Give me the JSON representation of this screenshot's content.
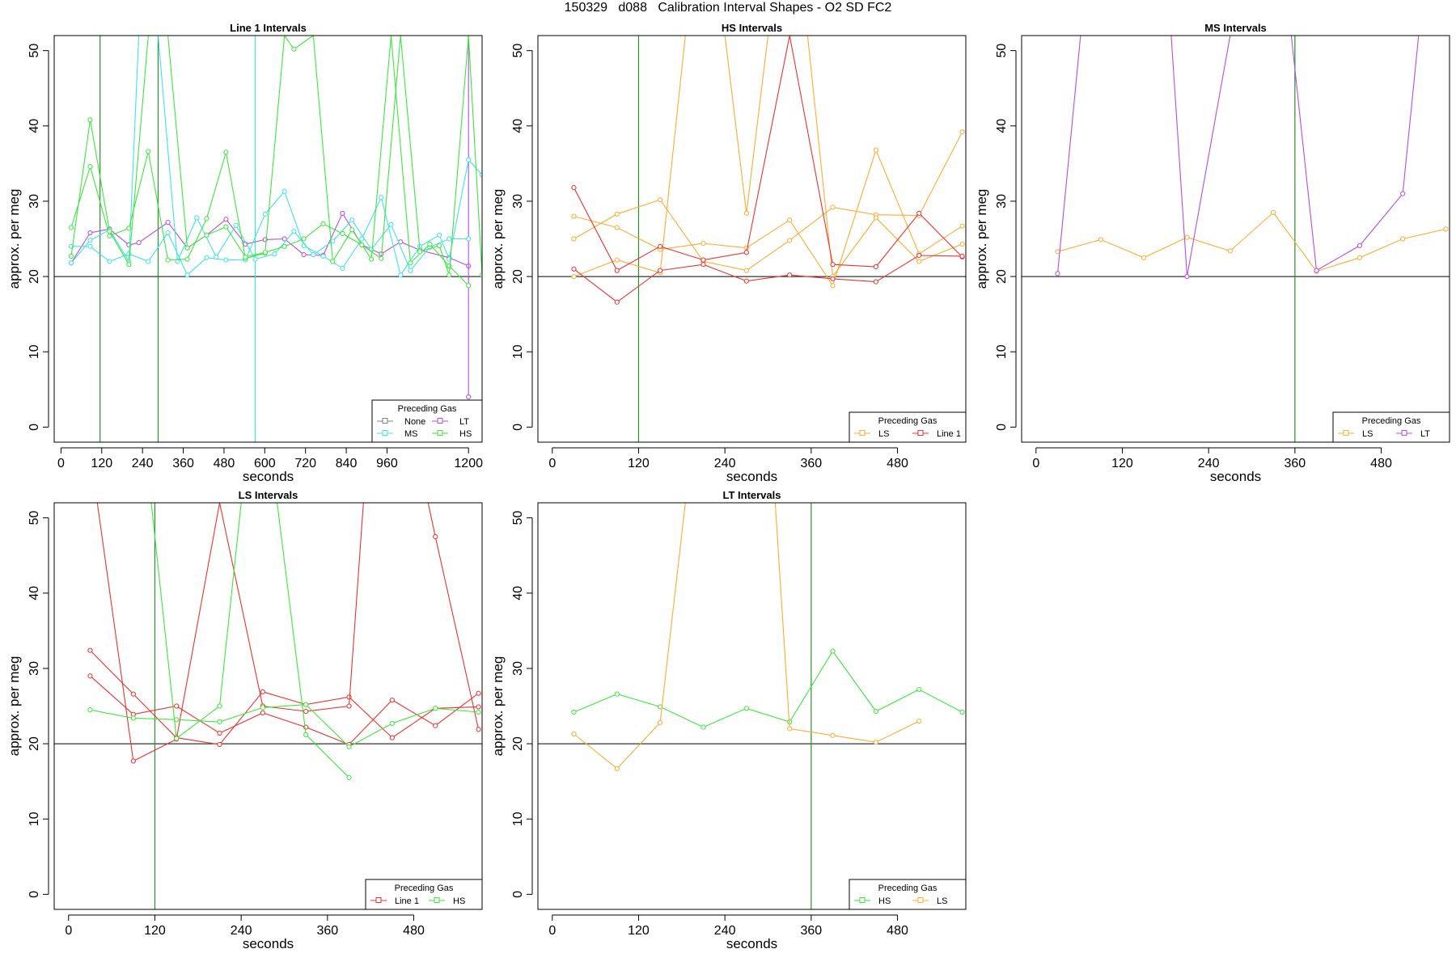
{
  "figure_title": "150329   d088   Calibration Interval Shapes - O2 SD FC2",
  "colors": {
    "None": "#808080",
    "LT": "#b44ee0",
    "MS": "#3fe4e4",
    "HS": "#3ee63e",
    "LS": "#ffaa33",
    "Line 1": "#e8332f",
    "vline": "#2e8b2e",
    "axis": "#000000"
  },
  "chart_data": [
    {
      "type": "line",
      "title": "Line 1 Intervals",
      "xlabel": "seconds",
      "ylabel": "approx. per meg",
      "xlim": [
        -20,
        1240
      ],
      "ylim": [
        -2,
        52
      ],
      "xticks": [
        0,
        120,
        240,
        360,
        480,
        600,
        720,
        840,
        960,
        1200
      ],
      "yticks": [
        0,
        10,
        20,
        30,
        40,
        50
      ],
      "hline": 20,
      "legend": {
        "title": "Preceding Gas",
        "position": "bottom-right",
        "columns": 2,
        "entries": [
          "None",
          "LT",
          "MS",
          "HS"
        ]
      },
      "vlines": [
        {
          "x": 115,
          "color": "vline"
        },
        {
          "x": 286,
          "color": "vline"
        },
        {
          "x": 572,
          "color": "MS"
        }
      ],
      "series": [
        {
          "group": "LT",
          "x": [
            30,
            86,
            143,
            200,
            229,
            315,
            372,
            429,
            486,
            543,
            601,
            658,
            715,
            772,
            829,
            886,
            943,
            1000,
            1057,
            1143,
            1200
          ],
          "y": [
            21.8,
            25.8,
            26.3,
            24.2,
            24.5,
            27.2,
            23.8,
            25.5,
            27.6,
            24.3,
            24.9,
            25.0,
            22.9,
            22.8,
            28.4,
            24.2,
            23.0,
            24.6,
            23.5,
            22.5,
            21.4
          ]
        },
        {
          "group": "LT",
          "x": [
            1200,
            1200
          ],
          "y": [
            52,
            4
          ]
        },
        {
          "group": "MS",
          "x": [
            30,
            86,
            143,
            200,
            257,
            315,
            372,
            429,
            486,
            543,
            601,
            658,
            715,
            772,
            829,
            886,
            943,
            1000,
            1057,
            1114,
            1143,
            1200,
            1240
          ],
          "y": [
            24.0,
            24.0,
            22.0,
            23.0,
            22.0,
            25.8,
            20.2,
            22.5,
            22.2,
            22.2,
            28.3,
            31.3,
            24.1,
            22.7,
            21.1,
            25.0,
            30.5,
            20.2,
            24.0,
            25.5,
            22.3,
            35.5,
            33.5
          ]
        },
        {
          "group": "MS",
          "x": [
            30,
            86,
            143,
            200,
            229,
            286,
            343,
            400,
            457,
            515,
            572,
            629,
            686,
            743,
            800,
            857,
            914,
            972,
            1029,
            1086,
            1143,
            1200
          ],
          "y": [
            21.8,
            24.8,
            26.2,
            22.0,
            52,
            52,
            22.0,
            27.8,
            22.6,
            26.8,
            22.3,
            23.0,
            26.0,
            22.9,
            24.7,
            27.5,
            23.6,
            26.9,
            20.8,
            23.9,
            25.0,
            25.0
          ]
        },
        {
          "group": "HS",
          "x": [
            30,
            86,
            143,
            200,
            257,
            315,
            372,
            429,
            486,
            543,
            601,
            658,
            686,
            743,
            800,
            857,
            914,
            972,
            1029,
            1086,
            1143,
            1200
          ],
          "y": [
            26.5,
            34.6,
            25.4,
            26.4,
            36.6,
            22.2,
            22.3,
            27.7,
            36.5,
            22.4,
            23.1,
            52,
            50.2,
            52,
            22.0,
            26.2,
            22.3,
            52,
            21.8,
            24.3,
            21.4,
            18.8
          ]
        },
        {
          "group": "HS",
          "x": [
            30,
            86,
            143,
            200,
            257,
            315,
            372,
            429,
            486,
            543,
            601,
            658,
            715,
            772,
            829,
            886,
            943,
            1000,
            1057,
            1114,
            1143,
            1200,
            1240
          ],
          "y": [
            22.7,
            40.8,
            26.0,
            21.6,
            52,
            52,
            23.8,
            25.5,
            26.6,
            22.6,
            23.2,
            24.0,
            25.0,
            27.0,
            25.7,
            24.2,
            22.4,
            52,
            23.3,
            24.1,
            20.2,
            52,
            20.2
          ]
        }
      ]
    },
    {
      "type": "line",
      "title": "HS Intervals",
      "xlabel": "seconds",
      "ylabel": "approx. per meg",
      "xlim": [
        -20,
        575
      ],
      "ylim": [
        -2,
        52
      ],
      "xticks": [
        0,
        120,
        240,
        360,
        480
      ],
      "yticks": [
        0,
        10,
        20,
        30,
        40,
        50
      ],
      "hline": 20,
      "legend": {
        "title": "Preceding Gas",
        "position": "bottom-right",
        "columns": 2,
        "entries": [
          "LS",
          "Line 1"
        ]
      },
      "vlines": [
        {
          "x": 120,
          "color": "vline"
        }
      ],
      "series": [
        {
          "group": "LS",
          "x": [
            30,
            90,
            150,
            210,
            270,
            330,
            390,
            450,
            510,
            570
          ],
          "y": [
            28.0,
            26.5,
            23.6,
            24.4,
            23.8,
            27.5,
            18.8,
            36.8,
            23.0,
            26.7
          ]
        },
        {
          "group": "LS",
          "x": [
            30,
            90,
            150,
            210,
            270,
            330,
            390,
            450,
            510,
            570
          ],
          "y": [
            25.0,
            28.3,
            30.2,
            22.0,
            20.8,
            24.8,
            29.2,
            28.2,
            28.1,
            39.2
          ]
        },
        {
          "group": "LS",
          "x": [
            30,
            90,
            150,
            185,
            240,
            270,
            300,
            355,
            390,
            450,
            510,
            570
          ],
          "y": [
            20.0,
            22.2,
            20.5,
            52,
            52,
            28.4,
            52,
            52,
            20.0,
            27.8,
            22.0,
            24.3
          ]
        },
        {
          "group": "Line 1",
          "x": [
            30,
            90,
            150,
            210,
            270,
            330,
            390,
            450,
            510,
            570
          ],
          "y": [
            31.8,
            20.8,
            24.0,
            22.2,
            23.2,
            52,
            21.6,
            21.3,
            28.4,
            22.6
          ]
        },
        {
          "group": "Line 1",
          "x": [
            30,
            90,
            150,
            210,
            270,
            330,
            390,
            450,
            510,
            570
          ],
          "y": [
            21.0,
            16.6,
            20.8,
            21.6,
            19.4,
            20.2,
            19.7,
            19.3,
            22.8,
            22.7
          ]
        }
      ]
    },
    {
      "type": "line",
      "title": "MS Intervals",
      "xlabel": "seconds",
      "ylabel": "approx. per meg",
      "xlim": [
        -20,
        575
      ],
      "ylim": [
        -2,
        52
      ],
      "xticks": [
        0,
        120,
        240,
        360,
        480
      ],
      "yticks": [
        0,
        10,
        20,
        30,
        40,
        50
      ],
      "hline": 20,
      "legend": {
        "title": "Preceding Gas",
        "position": "bottom-right",
        "columns": 2,
        "entries": [
          "LS",
          "LT"
        ]
      },
      "vlines": [
        {
          "x": 360,
          "color": "vline"
        }
      ],
      "series": [
        {
          "group": "LS",
          "x": [
            30,
            90,
            150,
            210,
            270,
            330,
            390,
            450,
            510,
            570
          ],
          "y": [
            23.3,
            24.9,
            22.5,
            25.2,
            23.4,
            28.5,
            20.7,
            22.5,
            25.0,
            26.3
          ]
        },
        {
          "group": "LT",
          "x": [
            30,
            62,
            188,
            210,
            270,
            355,
            390,
            450,
            510,
            532
          ],
          "y": [
            20.4,
            52,
            52,
            20.0,
            52,
            52,
            20.8,
            24.1,
            31.0,
            52
          ]
        }
      ]
    },
    {
      "type": "line",
      "title": "LS Intervals",
      "xlabel": "seconds",
      "ylabel": "approx. per meg",
      "xlim": [
        -20,
        575
      ],
      "ylim": [
        -2,
        52
      ],
      "xticks": [
        0,
        120,
        240,
        360,
        480
      ],
      "yticks": [
        0,
        10,
        20,
        30,
        40,
        50
      ],
      "hline": 20,
      "legend": {
        "title": "Preceding Gas",
        "position": "bottom-right",
        "columns": 2,
        "entries": [
          "Line 1",
          "HS"
        ]
      },
      "vlines": [
        {
          "x": 120,
          "color": "vline"
        }
      ],
      "series": [
        {
          "group": "Line 1",
          "x": [
            30,
            90,
            150,
            210,
            270,
            330,
            390,
            450,
            510,
            570
          ],
          "y": [
            32.4,
            26.6,
            20.8,
            19.9,
            26.9,
            25.2,
            26.2,
            20.8,
            24.7,
            24.9
          ]
        },
        {
          "group": "Line 1",
          "x": [
            30,
            90,
            150,
            210,
            270,
            330,
            390,
            450,
            510,
            570
          ],
          "y": [
            29.0,
            23.9,
            25.0,
            21.4,
            24.1,
            22.2,
            19.9,
            25.8,
            22.4,
            26.7
          ]
        },
        {
          "group": "Line 1",
          "x": [
            40,
            90,
            150,
            210,
            270,
            330,
            390,
            410,
            500,
            510,
            570
          ],
          "y": [
            52,
            17.7,
            20.6,
            52,
            25.0,
            24.3,
            25.0,
            52,
            52,
            47.5,
            21.9
          ]
        },
        {
          "group": "HS",
          "x": [
            30,
            90,
            150,
            210,
            270,
            330,
            390,
            450,
            510,
            570
          ],
          "y": [
            24.5,
            23.4,
            23.2,
            22.9,
            24.8,
            25.2,
            19.6,
            22.7,
            24.7,
            24.2
          ]
        },
        {
          "group": "HS",
          "x": [
            115,
            150,
            210,
            240,
            290,
            330,
            390
          ],
          "y": [
            52,
            20.7,
            25.0,
            52,
            52,
            21.2,
            15.5
          ]
        }
      ]
    },
    {
      "type": "line",
      "title": "LT Intervals",
      "xlabel": "seconds",
      "ylabel": "approx. per meg",
      "xlim": [
        -20,
        575
      ],
      "ylim": [
        -2,
        52
      ],
      "xticks": [
        0,
        120,
        240,
        360,
        480
      ],
      "yticks": [
        0,
        10,
        20,
        30,
        40,
        50
      ],
      "hline": 20,
      "legend": {
        "title": "Preceding Gas",
        "position": "bottom-right",
        "columns": 2,
        "entries": [
          "HS",
          "LS"
        ]
      },
      "vlines": [
        {
          "x": 360,
          "color": "vline"
        }
      ],
      "series": [
        {
          "group": "HS",
          "x": [
            30,
            90,
            150,
            210,
            270,
            330,
            390,
            450,
            510,
            570
          ],
          "y": [
            24.2,
            26.6,
            24.9,
            22.2,
            24.7,
            22.9,
            32.3,
            24.3,
            27.2,
            24.2
          ]
        },
        {
          "group": "LS",
          "x": [
            30,
            90,
            150,
            185,
            310,
            330,
            390,
            450,
            510
          ],
          "y": [
            21.3,
            16.7,
            22.8,
            52,
            52,
            22.0,
            21.1,
            20.2,
            23.0
          ]
        }
      ]
    }
  ]
}
